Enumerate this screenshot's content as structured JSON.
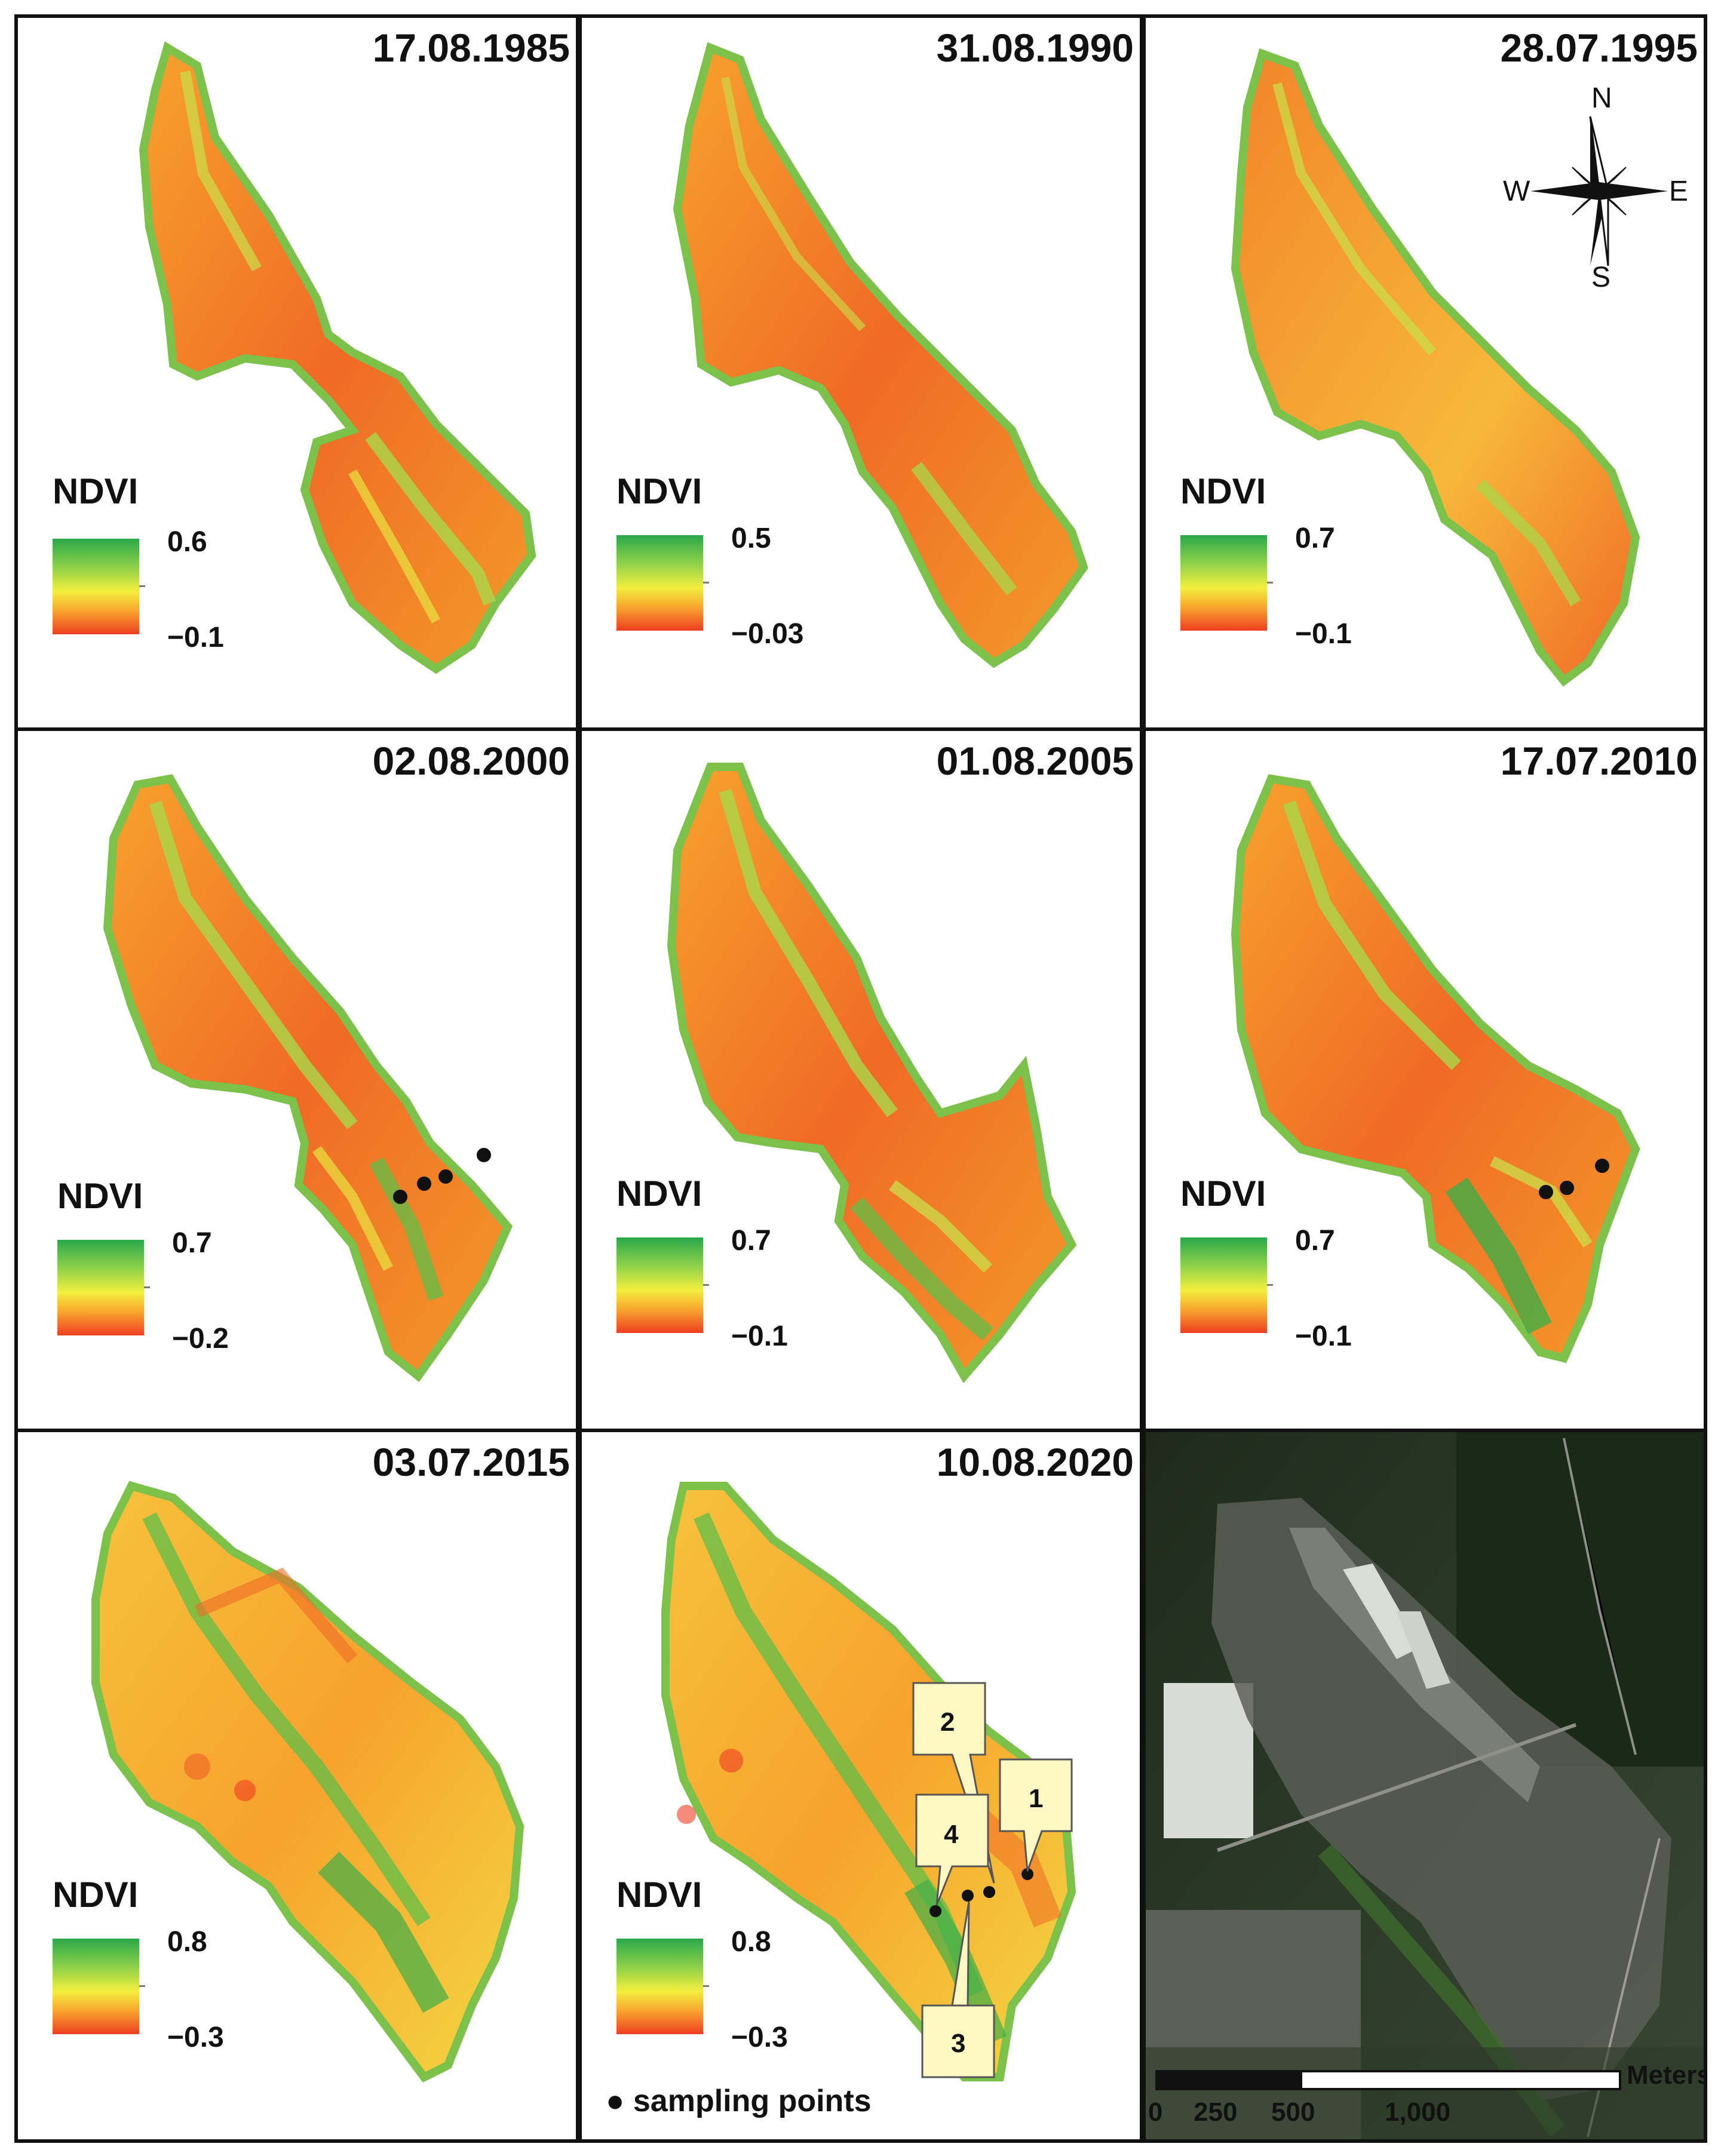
{
  "legend_title": "NDVI",
  "panels": [
    {
      "date": "17.08.1985",
      "ndvi_max": "0.6",
      "ndvi_min": "−0.1"
    },
    {
      "date": "31.08.1990",
      "ndvi_max": "0.5",
      "ndvi_min": "−0.03"
    },
    {
      "date": "28.07.1995",
      "ndvi_max": "0.7",
      "ndvi_min": "−0.1"
    },
    {
      "date": "02.08.2000",
      "ndvi_max": "0.7",
      "ndvi_min": "−0.2"
    },
    {
      "date": "01.08.2005",
      "ndvi_max": "0.7",
      "ndvi_min": "−0.1"
    },
    {
      "date": "17.07.2010",
      "ndvi_max": "0.7",
      "ndvi_min": "−0.1"
    },
    {
      "date": "03.07.2015",
      "ndvi_max": "0.8",
      "ndvi_min": "−0.3"
    },
    {
      "date": "10.08.2020",
      "ndvi_max": "0.8",
      "ndvi_min": "−0.3"
    }
  ],
  "compass": {
    "north": "N",
    "south": "S",
    "east": "E",
    "west": "W"
  },
  "sampling_points_label": "sampling points",
  "sampling_point_ids": [
    "1",
    "2",
    "3",
    "4"
  ],
  "scale_bar": {
    "unit": "Meters",
    "ticks": [
      "0",
      "250",
      "500",
      "1,000"
    ]
  },
  "colors": {
    "high_ndvi": "#2aa84a",
    "mid_ndvi": "#f3ef3f",
    "low_ndvi": "#ee3e22",
    "callout_fill": "#fdf7c4",
    "frame": "#111111"
  }
}
